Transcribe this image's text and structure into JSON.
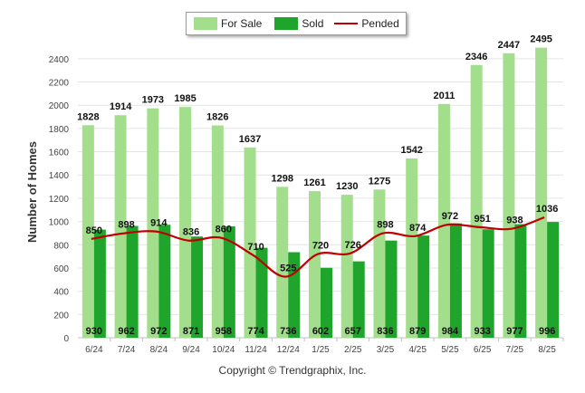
{
  "chart_data": {
    "type": "bar",
    "categories": [
      "6/24",
      "7/24",
      "8/24",
      "9/24",
      "10/24",
      "11/24",
      "12/24",
      "1/25",
      "2/25",
      "3/25",
      "4/25",
      "5/25",
      "6/25",
      "7/25",
      "8/25"
    ],
    "series": [
      {
        "name": "For Sale",
        "type": "bar",
        "color": "#a3de8c",
        "values": [
          1828,
          1914,
          1973,
          1985,
          1826,
          1637,
          1298,
          1261,
          1230,
          1275,
          1542,
          2011,
          2346,
          2447,
          2495
        ]
      },
      {
        "name": "Sold",
        "type": "bar",
        "color": "#1fa52b",
        "values": [
          930,
          962,
          972,
          871,
          958,
          774,
          736,
          602,
          657,
          836,
          879,
          984,
          933,
          977,
          996
        ]
      },
      {
        "name": "Pended",
        "type": "line",
        "color": "#c00000",
        "values": [
          850,
          898,
          914,
          836,
          860,
          710,
          525,
          720,
          726,
          898,
          874,
          972,
          951,
          938,
          1036
        ]
      }
    ],
    "ylabel": "Number of Homes",
    "xlabel": "",
    "ylim": [
      0,
      2500
    ],
    "yticks": [
      0,
      200,
      400,
      600,
      800,
      1000,
      1200,
      1400,
      1600,
      1800,
      2000,
      2200,
      2400
    ],
    "grid": true,
    "legend": "top-center"
  },
  "legend": {
    "for_sale": "For Sale",
    "sold": "Sold",
    "pended": "Pended"
  },
  "footer": {
    "copyright": "Copyright © Trendgraphix, Inc."
  }
}
